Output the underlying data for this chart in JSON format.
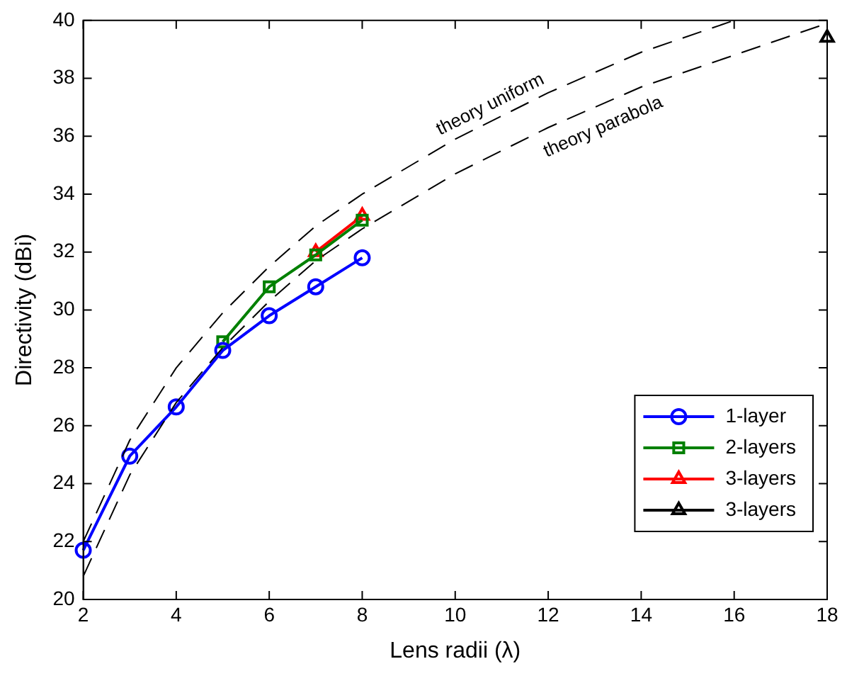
{
  "chart_data": {
    "type": "line",
    "xlabel": "Lens radii (λ)",
    "ylabel": "Directivity (dBi)",
    "xlim": [
      2,
      18
    ],
    "ylim": [
      20,
      40
    ],
    "xticks": [
      2,
      4,
      6,
      8,
      10,
      12,
      14,
      16,
      18
    ],
    "yticks": [
      20,
      22,
      24,
      26,
      28,
      30,
      32,
      34,
      36,
      38,
      40
    ],
    "grid": false,
    "legend": "bottom right",
    "series": [
      {
        "name": "theory uniform",
        "color": "#000000",
        "line_style": "dashed",
        "marker": "none",
        "x": [
          2,
          3,
          4,
          5,
          6,
          7,
          8,
          10,
          12,
          14,
          16
        ],
        "values": [
          22.0,
          25.5,
          28.0,
          29.9,
          31.5,
          32.9,
          34.0,
          35.9,
          37.5,
          38.9,
          40.0
        ]
      },
      {
        "name": "theory parabola",
        "color": "#000000",
        "line_style": "dashed",
        "marker": "none",
        "x": [
          2,
          3,
          4,
          5,
          6,
          7,
          8,
          10,
          12,
          14,
          16,
          18
        ],
        "values": [
          20.8,
          24.3,
          26.8,
          28.7,
          30.3,
          31.7,
          32.8,
          34.7,
          36.3,
          37.7,
          38.8,
          39.9
        ]
      },
      {
        "name": "1-layer",
        "color": "#0000ff",
        "marker": "circle",
        "x": [
          2,
          3,
          4,
          5,
          6,
          7,
          8
        ],
        "values": [
          21.7,
          24.95,
          26.65,
          28.6,
          29.8,
          30.8,
          31.8
        ]
      },
      {
        "name": "2-layers",
        "color": "#008000",
        "marker": "square",
        "x": [
          5,
          6,
          7,
          8
        ],
        "values": [
          28.9,
          30.8,
          31.9,
          33.1
        ]
      },
      {
        "name": "3-layers",
        "color": "#ff0000",
        "marker": "triangle",
        "x": [
          7,
          8
        ],
        "values": [
          32.0,
          33.25
        ]
      },
      {
        "name": "3-layers",
        "color": "#000000",
        "marker": "triangle",
        "x": [
          18
        ],
        "values": [
          39.4
        ]
      }
    ]
  }
}
